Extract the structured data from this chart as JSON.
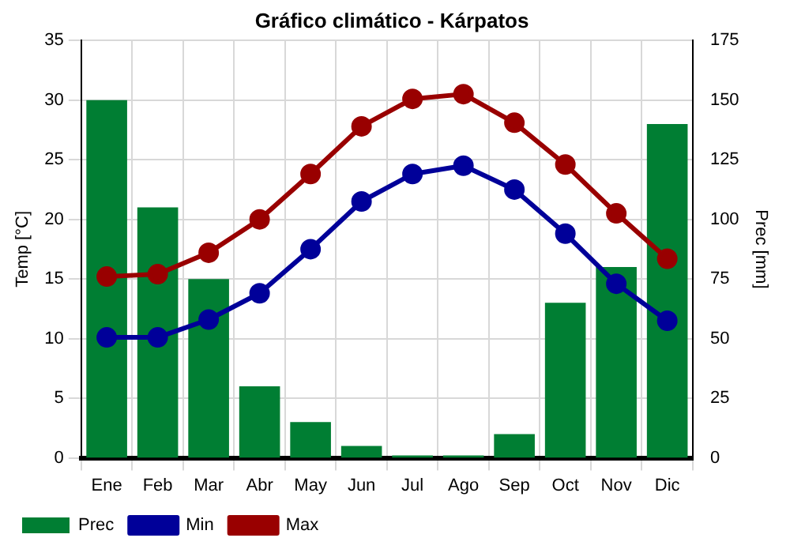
{
  "chart_data": {
    "type": "bar",
    "title": "Gráfico climático - Kárpatos",
    "ylabel": "Temp [°C]",
    "y2label": "Prec [mm]",
    "categories": [
      "Ene",
      "Feb",
      "Mar",
      "Abr",
      "May",
      "Jun",
      "Jul",
      "Ago",
      "Sep",
      "Oct",
      "Nov",
      "Dic"
    ],
    "series": [
      {
        "name": "Prec",
        "axis": "y2",
        "color": "#007e33",
        "values": [
          150,
          105,
          75,
          30,
          15,
          5,
          1,
          1,
          10,
          65,
          80,
          140
        ]
      },
      {
        "name": "Min",
        "type": "line",
        "color": "#000099",
        "values": [
          10.1,
          10.1,
          11.6,
          13.8,
          17.5,
          21.5,
          23.8,
          24.5,
          22.5,
          18.8,
          14.6,
          11.5
        ]
      },
      {
        "name": "Max",
        "type": "line",
        "color": "#990000",
        "values": [
          15.2,
          15.4,
          17.2,
          20.0,
          23.8,
          27.8,
          30.1,
          30.5,
          28.1,
          24.6,
          20.5,
          16.7
        ]
      }
    ],
    "ylim": [
      0,
      35
    ],
    "yticks": [
      0,
      5,
      10,
      15,
      20,
      25,
      30,
      35
    ],
    "y2lim": [
      0,
      175
    ],
    "y2ticks": [
      0,
      25,
      50,
      75,
      100,
      125,
      150,
      175
    ],
    "grid": true,
    "legend": "bottom left",
    "marker": "circle",
    "line_style": "solid"
  }
}
